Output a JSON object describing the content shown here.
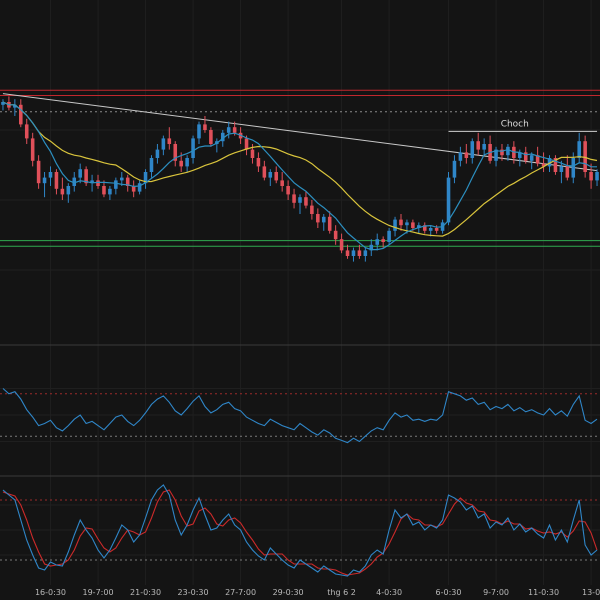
{
  "chart_data": {
    "type": "candlestick",
    "colors": {
      "background": "#141414",
      "up": "#2f86c8",
      "down": "#e0505a",
      "fast_ma": "#2c8fc0",
      "slow_ma": "#d9c43c",
      "resistance": "#c0272d",
      "support": "#2faa4f",
      "trendline": "#c8c8c8",
      "rsi": "#2f86c8",
      "stoch_k": "#2f86c8",
      "stoch_d": "#cc2a2a"
    },
    "x_tick_labels": [
      "16-0:30",
      "19-7:00",
      "21-0:30",
      "23-0:30",
      "27-7:00",
      "29-0:30",
      "thg 6 2",
      "4-0:30",
      "6-0:30",
      "9-7:00",
      "11-0:30",
      "13-0"
    ],
    "x_tick_index": [
      8,
      16,
      24,
      32,
      40,
      48,
      57,
      65,
      75,
      83,
      91,
      99
    ],
    "annotation": {
      "label": "Choch",
      "from_index": 75,
      "to_index": 100,
      "level": 0.745
    },
    "price": {
      "ylim": [
        0,
        1
      ],
      "horizontal_levels": [
        {
          "role": "resistance",
          "value": 0.892
        },
        {
          "role": "resistance",
          "value": 0.873
        },
        {
          "role": "dotted",
          "value": 0.815
        },
        {
          "role": "support",
          "value": 0.355
        },
        {
          "role": "support",
          "value": 0.335
        }
      ],
      "trendline": {
        "from": [
          0,
          0.88
        ],
        "to": [
          100,
          0.605
        ]
      },
      "candles": [
        [
          0.84,
          0.86,
          0.82,
          0.85
        ],
        [
          0.85,
          0.87,
          0.82,
          0.83
        ],
        [
          0.83,
          0.86,
          0.8,
          0.84
        ],
        [
          0.84,
          0.86,
          0.76,
          0.77
        ],
        [
          0.77,
          0.79,
          0.7,
          0.72
        ],
        [
          0.72,
          0.74,
          0.62,
          0.64
        ],
        [
          0.64,
          0.66,
          0.54,
          0.56
        ],
        [
          0.56,
          0.6,
          0.51,
          0.58
        ],
        [
          0.58,
          0.62,
          0.55,
          0.6
        ],
        [
          0.6,
          0.61,
          0.52,
          0.54
        ],
        [
          0.54,
          0.58,
          0.5,
          0.52
        ],
        [
          0.52,
          0.56,
          0.49,
          0.55
        ],
        [
          0.55,
          0.6,
          0.53,
          0.58
        ],
        [
          0.58,
          0.63,
          0.56,
          0.61
        ],
        [
          0.61,
          0.62,
          0.55,
          0.56
        ],
        [
          0.56,
          0.59,
          0.53,
          0.57
        ],
        [
          0.57,
          0.59,
          0.54,
          0.55
        ],
        [
          0.55,
          0.57,
          0.51,
          0.52
        ],
        [
          0.52,
          0.55,
          0.5,
          0.54
        ],
        [
          0.54,
          0.58,
          0.52,
          0.57
        ],
        [
          0.57,
          0.6,
          0.55,
          0.58
        ],
        [
          0.58,
          0.59,
          0.53,
          0.55
        ],
        [
          0.55,
          0.57,
          0.51,
          0.53
        ],
        [
          0.53,
          0.57,
          0.52,
          0.56
        ],
        [
          0.56,
          0.61,
          0.54,
          0.6
        ],
        [
          0.6,
          0.66,
          0.58,
          0.65
        ],
        [
          0.65,
          0.7,
          0.63,
          0.68
        ],
        [
          0.68,
          0.73,
          0.66,
          0.72
        ],
        [
          0.72,
          0.76,
          0.68,
          0.7
        ],
        [
          0.7,
          0.71,
          0.62,
          0.64
        ],
        [
          0.64,
          0.67,
          0.6,
          0.62
        ],
        [
          0.62,
          0.66,
          0.6,
          0.65
        ],
        [
          0.65,
          0.73,
          0.63,
          0.72
        ],
        [
          0.72,
          0.78,
          0.7,
          0.77
        ],
        [
          0.77,
          0.8,
          0.74,
          0.75
        ],
        [
          0.75,
          0.76,
          0.69,
          0.7
        ],
        [
          0.7,
          0.72,
          0.67,
          0.71
        ],
        [
          0.71,
          0.75,
          0.69,
          0.74
        ],
        [
          0.74,
          0.78,
          0.72,
          0.76
        ],
        [
          0.76,
          0.78,
          0.73,
          0.74
        ],
        [
          0.74,
          0.76,
          0.7,
          0.72
        ],
        [
          0.72,
          0.73,
          0.66,
          0.68
        ],
        [
          0.68,
          0.7,
          0.63,
          0.65
        ],
        [
          0.65,
          0.67,
          0.6,
          0.62
        ],
        [
          0.62,
          0.64,
          0.57,
          0.58
        ],
        [
          0.58,
          0.61,
          0.55,
          0.6
        ],
        [
          0.6,
          0.62,
          0.56,
          0.57
        ],
        [
          0.57,
          0.6,
          0.53,
          0.55
        ],
        [
          0.55,
          0.57,
          0.5,
          0.52
        ],
        [
          0.52,
          0.54,
          0.47,
          0.49
        ],
        [
          0.49,
          0.52,
          0.45,
          0.51
        ],
        [
          0.51,
          0.53,
          0.47,
          0.48
        ],
        [
          0.48,
          0.5,
          0.43,
          0.45
        ],
        [
          0.45,
          0.47,
          0.4,
          0.42
        ],
        [
          0.42,
          0.45,
          0.39,
          0.44
        ],
        [
          0.44,
          0.46,
          0.38,
          0.39
        ],
        [
          0.39,
          0.41,
          0.34,
          0.36
        ],
        [
          0.36,
          0.38,
          0.31,
          0.32
        ],
        [
          0.32,
          0.34,
          0.29,
          0.3
        ],
        [
          0.3,
          0.33,
          0.28,
          0.32
        ],
        [
          0.32,
          0.34,
          0.29,
          0.3
        ],
        [
          0.3,
          0.33,
          0.28,
          0.32
        ],
        [
          0.32,
          0.36,
          0.3,
          0.34
        ],
        [
          0.34,
          0.38,
          0.32,
          0.36
        ],
        [
          0.36,
          0.37,
          0.33,
          0.35
        ],
        [
          0.35,
          0.4,
          0.34,
          0.39
        ],
        [
          0.39,
          0.44,
          0.37,
          0.43
        ],
        [
          0.43,
          0.45,
          0.39,
          0.41
        ],
        [
          0.41,
          0.43,
          0.38,
          0.42
        ],
        [
          0.42,
          0.43,
          0.39,
          0.4
        ],
        [
          0.4,
          0.42,
          0.38,
          0.41
        ],
        [
          0.41,
          0.42,
          0.38,
          0.39
        ],
        [
          0.39,
          0.41,
          0.37,
          0.4
        ],
        [
          0.4,
          0.41,
          0.38,
          0.39
        ],
        [
          0.39,
          0.43,
          0.38,
          0.42
        ],
        [
          0.42,
          0.6,
          0.41,
          0.58
        ],
        [
          0.58,
          0.66,
          0.56,
          0.64
        ],
        [
          0.64,
          0.69,
          0.62,
          0.67
        ],
        [
          0.67,
          0.7,
          0.63,
          0.65
        ],
        [
          0.65,
          0.72,
          0.63,
          0.71
        ],
        [
          0.71,
          0.74,
          0.66,
          0.68
        ],
        [
          0.68,
          0.72,
          0.66,
          0.7
        ],
        [
          0.7,
          0.73,
          0.63,
          0.64
        ],
        [
          0.64,
          0.69,
          0.62,
          0.68
        ],
        [
          0.68,
          0.7,
          0.64,
          0.66
        ],
        [
          0.66,
          0.7,
          0.64,
          0.69
        ],
        [
          0.69,
          0.71,
          0.63,
          0.65
        ],
        [
          0.65,
          0.68,
          0.62,
          0.67
        ],
        [
          0.67,
          0.69,
          0.63,
          0.64
        ],
        [
          0.64,
          0.67,
          0.61,
          0.66
        ],
        [
          0.66,
          0.69,
          0.62,
          0.63
        ],
        [
          0.63,
          0.67,
          0.6,
          0.62
        ],
        [
          0.62,
          0.66,
          0.6,
          0.65
        ],
        [
          0.65,
          0.66,
          0.59,
          0.6
        ],
        [
          0.6,
          0.64,
          0.56,
          0.62
        ],
        [
          0.62,
          0.66,
          0.57,
          0.58
        ],
        [
          0.58,
          0.67,
          0.56,
          0.65
        ],
        [
          0.65,
          0.74,
          0.63,
          0.71
        ],
        [
          0.71,
          0.73,
          0.58,
          0.6
        ],
        [
          0.6,
          0.63,
          0.54,
          0.57
        ],
        [
          0.57,
          0.61,
          0.55,
          0.6
        ]
      ]
    },
    "rsi": {
      "ylim": [
        0,
        100
      ],
      "levels": [
        70,
        30
      ],
      "values": [
        75,
        70,
        72,
        65,
        55,
        48,
        40,
        42,
        45,
        38,
        35,
        40,
        46,
        50,
        42,
        44,
        40,
        36,
        42,
        48,
        50,
        44,
        40,
        45,
        52,
        60,
        65,
        68,
        62,
        54,
        50,
        56,
        63,
        68,
        58,
        52,
        55,
        60,
        62,
        56,
        54,
        48,
        45,
        42,
        40,
        46,
        43,
        40,
        38,
        36,
        42,
        38,
        34,
        31,
        36,
        33,
        28,
        26,
        24,
        28,
        25,
        30,
        35,
        38,
        36,
        45,
        52,
        48,
        50,
        45,
        46,
        44,
        46,
        45,
        50,
        72,
        70,
        68,
        64,
        66,
        60,
        62,
        55,
        58,
        56,
        60,
        54,
        57,
        53,
        55,
        52,
        50,
        56,
        50,
        54,
        49,
        60,
        68,
        45,
        42,
        46
      ]
    },
    "stochastic": {
      "ylim": [
        0,
        100
      ],
      "levels": [
        80,
        20
      ],
      "k": [
        90,
        85,
        80,
        60,
        40,
        25,
        12,
        10,
        18,
        15,
        14,
        28,
        45,
        60,
        50,
        42,
        30,
        22,
        30,
        42,
        55,
        50,
        38,
        45,
        62,
        80,
        90,
        95,
        85,
        60,
        45,
        55,
        70,
        82,
        65,
        50,
        52,
        60,
        66,
        55,
        50,
        38,
        30,
        24,
        20,
        32,
        26,
        20,
        15,
        12,
        20,
        16,
        12,
        8,
        14,
        10,
        6,
        5,
        4,
        10,
        8,
        14,
        25,
        30,
        26,
        50,
        70,
        62,
        66,
        55,
        58,
        50,
        55,
        52,
        60,
        85,
        82,
        78,
        70,
        74,
        62,
        66,
        52,
        58,
        55,
        62,
        50,
        56,
        48,
        52,
        46,
        42,
        55,
        40,
        50,
        38,
        60,
        80,
        35,
        25,
        30
      ],
      "d": [
        88,
        86,
        84,
        75,
        60,
        42,
        28,
        16,
        14,
        15,
        16,
        20,
        30,
        44,
        52,
        51,
        41,
        32,
        28,
        32,
        42,
        50,
        48,
        45,
        48,
        62,
        78,
        88,
        90,
        80,
        64,
        54,
        56,
        69,
        72,
        66,
        56,
        54,
        60,
        62,
        57,
        48,
        40,
        31,
        25,
        26,
        26,
        26,
        20,
        16,
        16,
        16,
        16,
        12,
        11,
        11,
        10,
        7,
        5,
        6,
        7,
        11,
        16,
        23,
        27,
        36,
        48,
        61,
        66,
        61,
        60,
        55,
        55,
        53,
        56,
        66,
        76,
        82,
        77,
        75,
        69,
        68,
        60,
        59,
        56,
        59,
        56,
        56,
        51,
        52,
        49,
        47,
        48,
        46,
        48,
        43,
        49,
        59,
        58,
        47,
        30
      ]
    }
  }
}
